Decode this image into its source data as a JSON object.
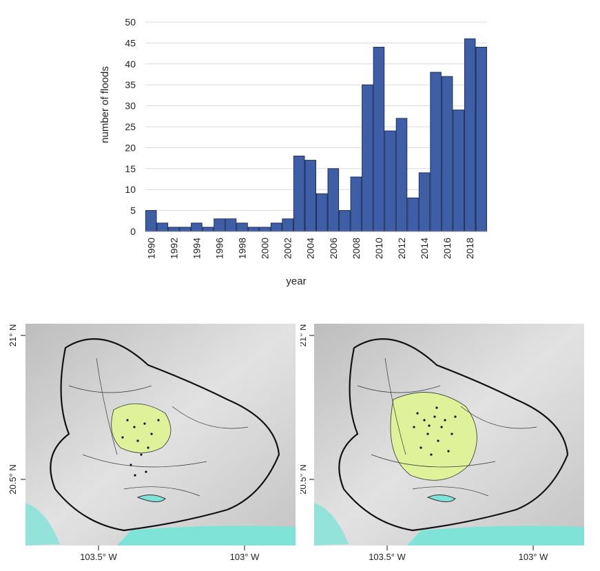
{
  "chart_data": {
    "type": "bar",
    "xlabel": "year",
    "ylabel": "number of floods",
    "ylim": [
      0,
      50
    ],
    "yticks": [
      0,
      5,
      10,
      15,
      20,
      25,
      30,
      35,
      40,
      45,
      50
    ],
    "categories": [
      "1990",
      "1991",
      "1992",
      "1993",
      "1994",
      "1995",
      "1996",
      "1997",
      "1998",
      "1999",
      "2000",
      "2001",
      "2002",
      "2003",
      "2004",
      "2005",
      "2006",
      "2007",
      "2008",
      "2009",
      "2010",
      "2011",
      "2012",
      "2013",
      "2014",
      "2015",
      "2016",
      "2017",
      "2018",
      "2019"
    ],
    "values": [
      5,
      2,
      1,
      1,
      2,
      1,
      3,
      3,
      2,
      1,
      1,
      2,
      3,
      18,
      17,
      9,
      15,
      5,
      13,
      35,
      44,
      24,
      27,
      8,
      14,
      38,
      37,
      29,
      46,
      44
    ],
    "xtick_labels": [
      "1990",
      "1992",
      "1994",
      "1996",
      "1998",
      "2000",
      "2002",
      "2004",
      "2006",
      "2008",
      "2010",
      "2012",
      "2014",
      "2016",
      "2018"
    ],
    "bar_color": "#3e5fa6",
    "grid": "horizontal"
  },
  "maps": {
    "lat_labels": [
      "21° N",
      "20.5° N"
    ],
    "lon_labels": [
      "103.5° W",
      "103° W"
    ],
    "colors": {
      "flood_area": "#dff29a",
      "water": "#7fe3d8",
      "terrain": "#cfcfcf"
    }
  }
}
